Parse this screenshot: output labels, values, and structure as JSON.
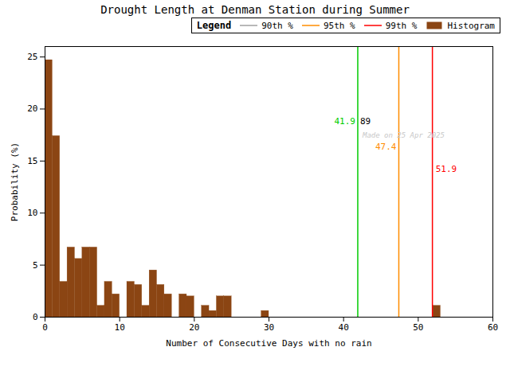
{
  "chart_data": {
    "type": "histogram",
    "title": "Drought Length at Denman Station during Summer",
    "xlabel": "Number of Consecutive Days with no rain",
    "ylabel": "Probability (%)",
    "name": "Histogram",
    "bins": [
      0,
      1,
      2,
      3,
      4,
      5,
      6,
      7,
      8,
      9,
      10,
      11,
      12,
      13,
      14,
      15,
      16,
      17,
      18,
      19,
      20,
      21,
      22,
      23,
      24,
      25,
      26,
      27,
      28,
      29,
      30,
      31,
      32,
      33,
      34,
      35,
      36,
      37,
      38,
      39,
      40,
      41,
      42,
      43,
      44,
      45,
      46,
      47,
      48,
      49,
      50,
      51,
      52,
      53,
      54,
      55,
      56,
      57,
      58,
      59,
      60
    ],
    "values": [
      24.7,
      17.4,
      3.4,
      6.7,
      5.6,
      6.7,
      6.7,
      1.1,
      3.4,
      2.2,
      0.0,
      3.4,
      3.1,
      1.1,
      4.5,
      3.1,
      2.2,
      0.0,
      2.2,
      2.0,
      0.0,
      1.1,
      0.6,
      2.0,
      2.0,
      0.0,
      0.0,
      0.0,
      0.0,
      0.6,
      0.0,
      0.0,
      0.0,
      0.0,
      0.0,
      0.0,
      0.0,
      0.0,
      0.0,
      0.0,
      0.0,
      0.0,
      0.0,
      0.0,
      0.0,
      0.0,
      0.0,
      0.0,
      0.0,
      0.0,
      0.0,
      0.0,
      1.1,
      0.0,
      0.0,
      0.0,
      0.0,
      0.0,
      0.0,
      0.0
    ],
    "color": "#8B4513",
    "xlim": [
      0,
      60
    ],
    "ylim": [
      0,
      26
    ],
    "xticks": [
      0,
      10,
      20,
      30,
      40,
      50,
      60
    ],
    "yticks": [
      0,
      5,
      10,
      15,
      20,
      25
    ],
    "lines": [
      {
        "name": "90th %",
        "x": 41.9,
        "label": "41.9",
        "color": "#00CC00",
        "legend_color": "#A0A0A0"
      },
      {
        "name": "95th %",
        "x": 47.4,
        "label": "47.4",
        "color": "#FF8C00",
        "legend_color": "#FF8C00"
      },
      {
        "name": "99th %",
        "x": 51.9,
        "label": "51.9",
        "color": "#FF0000",
        "legend_color": "#FF0000"
      }
    ],
    "annotations": [
      {
        "text": "89",
        "x": 41.9,
        "color": "#000000"
      },
      {
        "text": "Made on 25 Apr 2025",
        "x": 41.9,
        "color": "#C8C8C8"
      }
    ],
    "legend": "upper right",
    "legend_title": "Legend",
    "grid": false
  }
}
